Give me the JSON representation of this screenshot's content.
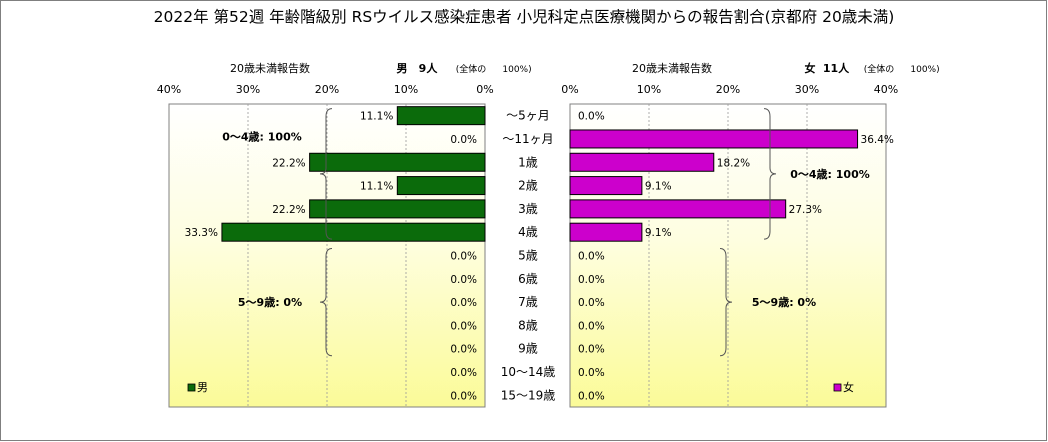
{
  "chart_data": {
    "type": "bar",
    "title": "2022年 第52週 年齢階級別 RSウイルス感染症患者 小児科定点医療機関からの報告割合(京都府 20歳未満)",
    "categories": [
      "～5ヶ月",
      "～11ヶ月",
      "1歳",
      "2歳",
      "3歳",
      "4歳",
      "5歳",
      "6歳",
      "7歳",
      "8歳",
      "9歳",
      "10～14歳",
      "15～19歳"
    ],
    "xlim": [
      0,
      40
    ],
    "tick_labels": [
      "0%",
      "10%",
      "20%",
      "30%",
      "40%"
    ],
    "grid": true,
    "panels": [
      {
        "id": "male",
        "side": "left",
        "header_label": "20歳未満報告数",
        "header_name": "男",
        "header_count": "9人",
        "header_note": "(全体の",
        "header_pct": "100%)",
        "legend": "男",
        "legend_position": "bottom-left",
        "color": "#0b6b0b",
        "values": [
          11.1,
          0.0,
          22.2,
          11.1,
          22.2,
          33.3,
          0.0,
          0.0,
          0.0,
          0.0,
          0.0,
          0.0,
          0.0
        ],
        "labels": [
          "11.1%",
          "0.0%",
          "22.2%",
          "11.1%",
          "22.2%",
          "33.3%",
          "0.0%",
          "0.0%",
          "0.0%",
          "0.0%",
          "0.0%",
          "0.0%",
          "0.0%"
        ],
        "annotations": [
          "0～4歳: 100%",
          "5～9歳: 0%"
        ]
      },
      {
        "id": "female",
        "side": "right",
        "header_label": "20歳未満報告数",
        "header_name": "女",
        "header_count": "11人",
        "header_note": "(全体の",
        "header_pct": "100%)",
        "legend": "女",
        "legend_position": "bottom-right",
        "color": "#cc00cc",
        "values": [
          0.0,
          36.4,
          18.2,
          9.1,
          27.3,
          9.1,
          0.0,
          0.0,
          0.0,
          0.0,
          0.0,
          0.0,
          0.0
        ],
        "labels": [
          "0.0%",
          "36.4%",
          "18.2%",
          "9.1%",
          "27.3%",
          "9.1%",
          "0.0%",
          "0.0%",
          "0.0%",
          "0.0%",
          "0.0%",
          "0.0%",
          "0.0%"
        ],
        "annotations": [
          "0～4歳: 100%",
          "5～9歳: 0%"
        ]
      }
    ]
  }
}
